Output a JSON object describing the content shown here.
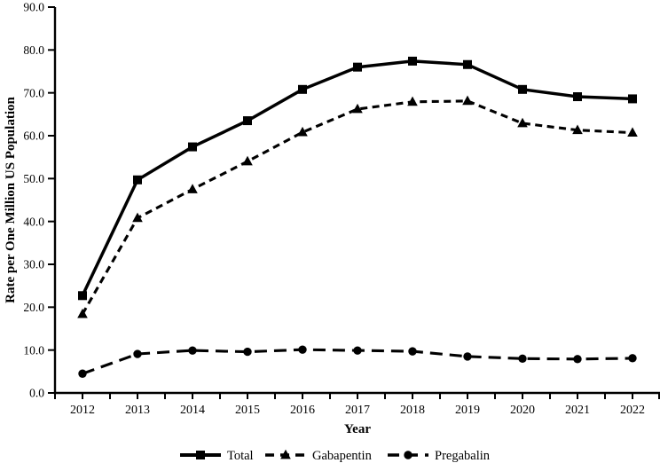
{
  "page": {
    "background": "#ffffff",
    "foreground": "#000000"
  },
  "chart_data": {
    "type": "line",
    "title": "",
    "xlabel": "Year",
    "ylabel": "Rate per One Million US Population",
    "ylim": [
      0,
      90
    ],
    "ytick_step": 10,
    "ytick_label_decimals": 1,
    "x": [
      2012,
      2013,
      2014,
      2015,
      2016,
      2017,
      2018,
      2019,
      2020,
      2021,
      2022
    ],
    "series": [
      {
        "name": "Total",
        "line_style": "solid",
        "marker": "square",
        "color": "#000000",
        "values": [
          22.7,
          49.7,
          57.4,
          63.5,
          70.8,
          76.0,
          77.4,
          76.6,
          70.8,
          69.1,
          68.6
        ]
      },
      {
        "name": "Gabapentin",
        "line_style": "dashed",
        "marker": "triangle-up",
        "color": "#000000",
        "values": [
          18.4,
          40.8,
          47.5,
          54.0,
          60.8,
          66.2,
          67.9,
          68.1,
          62.9,
          61.3,
          60.7
        ]
      },
      {
        "name": "Pregabalin",
        "line_style": "long-dashed",
        "marker": "circle",
        "color": "#000000",
        "values": [
          4.5,
          9.1,
          9.9,
          9.6,
          10.1,
          9.9,
          9.7,
          8.5,
          8.0,
          7.9,
          8.1
        ]
      }
    ],
    "legend_position": "bottom",
    "grid": false,
    "axis_color": "#000000"
  }
}
